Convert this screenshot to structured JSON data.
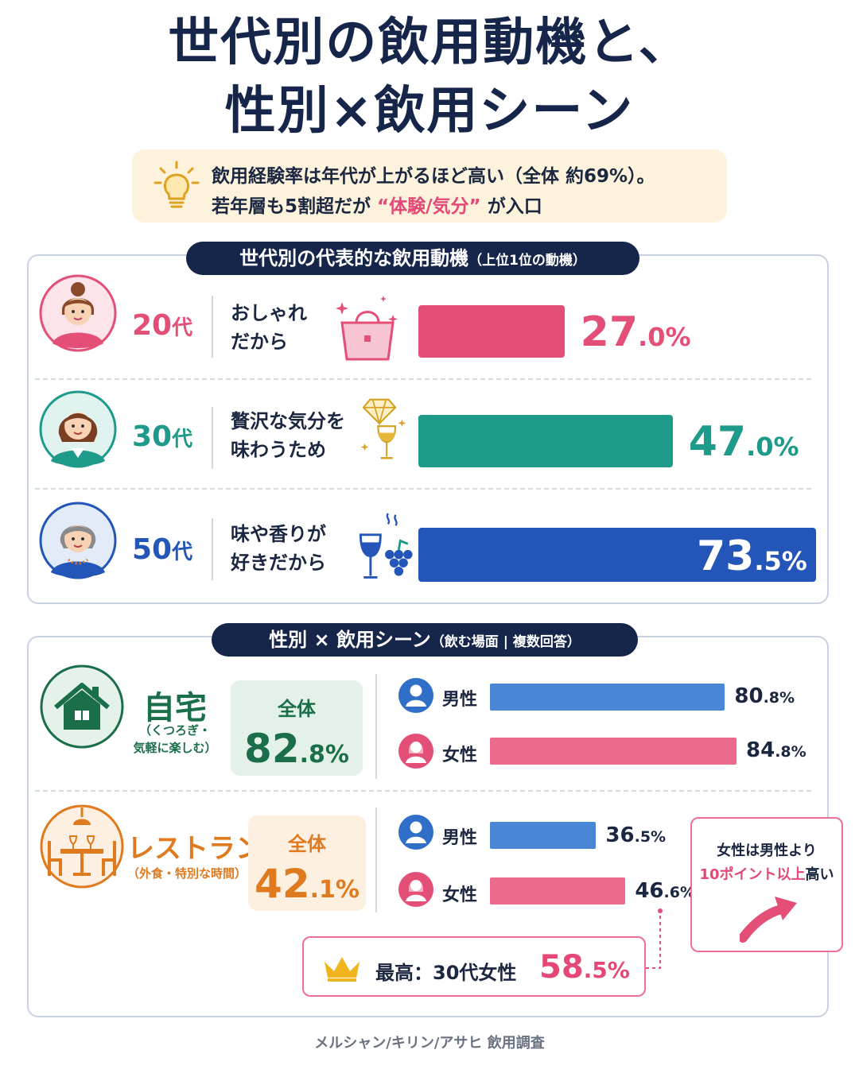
{
  "title": {
    "line1": "世代別の飲用動機と、",
    "line2": "性別×飲用シーン"
  },
  "insight": {
    "line1": "飲用経験率は年代が上がるほど高い（全体 約69%）。",
    "line2_pre": "若年層も5割超だが",
    "line2_hl": "“体験/気分”",
    "line2_post": "が入口",
    "icon": "lightbulb-icon"
  },
  "colors": {
    "navy": "#16254a",
    "pink": "#e44f77",
    "teal": "#1e9a8a",
    "blue": "#2356b8",
    "male": "#4a86d6",
    "female": "#ec6b8c",
    "green": "#1b6e4a",
    "orange": "#e07a1f"
  },
  "section1": {
    "title": "世代別の代表的な飲用動機",
    "subtitle": "（上位1位の動機）"
  },
  "section2": {
    "title": "性別 × 飲用シーン",
    "subtitle": "（飲む場面 | 複数回答）"
  },
  "chart_data": [
    {
      "type": "bar",
      "categories": [
        "20代",
        "30代",
        "50代"
      ],
      "motives": [
        [
          "おしゃれ",
          "だから"
        ],
        [
          "贅沢な気分を",
          "味わうため"
        ],
        [
          "味や香りが",
          "好きだから"
        ]
      ],
      "icons": [
        "handbag-icon",
        "diamond-wine-icon",
        "wine-grapes-icon"
      ],
      "values": [
        27.0,
        47.0,
        73.5
      ],
      "labels": [
        {
          "age": "20",
          "age_unit": "代",
          "int": "27",
          "dec": ".0%"
        },
        {
          "age": "30",
          "age_unit": "代",
          "int": "47",
          "dec": ".0%"
        },
        {
          "age": "50",
          "age_unit": "代",
          "int": "73",
          "dec": ".5%"
        }
      ],
      "colors": [
        "#e44f77",
        "#1e9a8a",
        "#2356b8"
      ],
      "xlim": [
        0,
        100
      ]
    },
    {
      "type": "bar",
      "categories": [
        "男性",
        "女性"
      ],
      "scenes": [
        {
          "name": "自宅",
          "sub": [
            "（くつろぎ・",
            "気軽に楽しむ）"
          ],
          "icon": "house-icon",
          "total_label": "全体",
          "total": 82.8,
          "total_int": "82",
          "total_dec": ".8%",
          "series": [
            {
              "name": "男性",
              "value": 80.8,
              "int": "80",
              "dec": ".8%",
              "icon": "male-user-icon"
            },
            {
              "name": "女性",
              "value": 84.8,
              "int": "84",
              "dec": ".8%",
              "icon": "female-user-icon"
            }
          ]
        },
        {
          "name": "レストラン",
          "sub": [
            "（外食・特別な時間）"
          ],
          "icon": "restaurant-table-icon",
          "total_label": "全体",
          "total": 42.1,
          "total_int": "42",
          "total_dec": ".1%",
          "series": [
            {
              "name": "男性",
              "value": 36.5,
              "int": "36",
              "dec": ".5%",
              "icon": "male-user-icon"
            },
            {
              "name": "女性",
              "value": 46.6,
              "int": "46",
              "dec": ".6%",
              "icon": "female-user-icon"
            }
          ]
        }
      ],
      "xlim": [
        0,
        100
      ]
    }
  ],
  "callout": {
    "line1": "女性は男性より",
    "line2_hl": "10ポイント以上",
    "line2_post": "高い",
    "icon": "up-arrow-icon"
  },
  "highlight": {
    "label": "最高：30代女性",
    "value_int": "58",
    "value_dec": ".5%",
    "icon": "crown-icon"
  },
  "source": "メルシャン/キリン/アサヒ 飲用調査"
}
